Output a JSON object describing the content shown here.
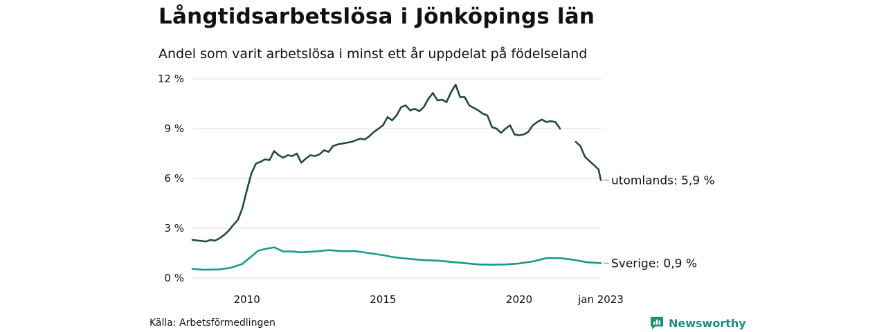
{
  "title": "Långtidsarbetslösa i Jönköpings län",
  "subtitle": "Andel som varit arbetslösa i minst ett år uppdelat på födelseland",
  "source": "Källa: Arbetsförmedlingen",
  "brand": "Newsworthy",
  "colors": {
    "utomlands": "#1f4a40",
    "sverige": "#179a87",
    "grid": "#dddddd"
  },
  "chart_data": {
    "type": "line",
    "title": "Långtidsarbetslösa i Jönköpings län",
    "subtitle": "Andel som varit arbetslösa i minst ett år uppdelat på födelseland",
    "xlabel": "",
    "ylabel": "",
    "ylim": [
      0,
      12
    ],
    "xlim": [
      "2008-01",
      "2023-01"
    ],
    "y_ticks": [
      {
        "value": 0,
        "label": "0 %"
      },
      {
        "value": 3,
        "label": "3 %"
      },
      {
        "value": 6,
        "label": "6 %"
      },
      {
        "value": 9,
        "label": "9 %"
      },
      {
        "value": 12,
        "label": "12 %"
      }
    ],
    "x_ticks": [
      {
        "value": "2010-01",
        "label": "2010"
      },
      {
        "value": "2015-01",
        "label": "2015"
      },
      {
        "value": "2020-01",
        "label": "2020"
      },
      {
        "value": "2023-01",
        "label": "jan 2023"
      }
    ],
    "grid": "horizontal",
    "legend": "end-labels",
    "series": [
      {
        "name": "utomlands",
        "end_label": "utomlands: 5,9 %",
        "color": "#1f4a40",
        "points": [
          [
            "2008-01",
            2.3
          ],
          [
            "2008-04",
            2.25
          ],
          [
            "2008-07",
            2.2
          ],
          [
            "2008-09",
            2.3
          ],
          [
            "2008-11",
            2.25
          ],
          [
            "2009-01",
            2.4
          ],
          [
            "2009-03",
            2.6
          ],
          [
            "2009-05",
            2.85
          ],
          [
            "2009-07",
            3.2
          ],
          [
            "2009-09",
            3.5
          ],
          [
            "2009-11",
            4.2
          ],
          [
            "2010-01",
            5.3
          ],
          [
            "2010-03",
            6.3
          ],
          [
            "2010-05",
            6.9
          ],
          [
            "2010-07",
            7.0
          ],
          [
            "2010-09",
            7.15
          ],
          [
            "2010-11",
            7.1
          ],
          [
            "2011-01",
            7.65
          ],
          [
            "2011-03",
            7.4
          ],
          [
            "2011-05",
            7.25
          ],
          [
            "2011-07",
            7.4
          ],
          [
            "2011-09",
            7.35
          ],
          [
            "2011-11",
            7.5
          ],
          [
            "2012-01",
            6.95
          ],
          [
            "2012-03",
            7.2
          ],
          [
            "2012-05",
            7.4
          ],
          [
            "2012-07",
            7.35
          ],
          [
            "2012-09",
            7.45
          ],
          [
            "2012-11",
            7.7
          ],
          [
            "2013-01",
            7.6
          ],
          [
            "2013-03",
            7.95
          ],
          [
            "2013-05",
            8.05
          ],
          [
            "2013-07",
            8.1
          ],
          [
            "2013-09",
            8.15
          ],
          [
            "2013-11",
            8.2
          ],
          [
            "2014-01",
            8.3
          ],
          [
            "2014-03",
            8.4
          ],
          [
            "2014-05",
            8.35
          ],
          [
            "2014-07",
            8.55
          ],
          [
            "2014-09",
            8.8
          ],
          [
            "2014-11",
            9.0
          ],
          [
            "2015-01",
            9.2
          ],
          [
            "2015-03",
            9.7
          ],
          [
            "2015-05",
            9.5
          ],
          [
            "2015-07",
            9.8
          ],
          [
            "2015-09",
            10.3
          ],
          [
            "2015-11",
            10.4
          ],
          [
            "2016-01",
            10.1
          ],
          [
            "2016-03",
            10.2
          ],
          [
            "2016-05",
            10.05
          ],
          [
            "2016-07",
            10.3
          ],
          [
            "2016-09",
            10.8
          ],
          [
            "2016-11",
            11.15
          ],
          [
            "2017-01",
            10.7
          ],
          [
            "2017-03",
            10.75
          ],
          [
            "2017-05",
            10.6
          ],
          [
            "2017-07",
            11.2
          ],
          [
            "2017-09",
            11.65
          ],
          [
            "2017-11",
            10.9
          ],
          [
            "2018-01",
            10.9
          ],
          [
            "2018-03",
            10.4
          ],
          [
            "2018-05",
            10.25
          ],
          [
            "2018-07",
            10.1
          ],
          [
            "2018-09",
            9.9
          ],
          [
            "2018-11",
            9.8
          ],
          [
            "2019-01",
            9.1
          ],
          [
            "2019-03",
            9.0
          ],
          [
            "2019-05",
            8.75
          ],
          [
            "2019-07",
            9.0
          ],
          [
            "2019-09",
            9.2
          ],
          [
            "2019-11",
            8.65
          ],
          [
            "2020-01",
            8.6
          ],
          [
            "2020-03",
            8.65
          ],
          [
            "2020-05",
            8.8
          ],
          [
            "2020-07",
            9.2
          ],
          [
            "2020-09",
            9.4
          ],
          [
            "2020-11",
            9.55
          ],
          [
            "2021-01",
            9.4
          ],
          [
            "2021-03",
            9.45
          ],
          [
            "2021-05",
            9.4
          ],
          [
            "2021-07",
            9.0
          ],
          null,
          [
            "2022-02",
            8.2
          ],
          [
            "2022-04",
            7.95
          ],
          [
            "2022-06",
            7.3
          ],
          [
            "2022-08",
            7.05
          ],
          [
            "2022-10",
            6.8
          ],
          [
            "2022-12",
            6.55
          ],
          [
            "2023-01",
            5.9
          ]
        ]
      },
      {
        "name": "Sverige",
        "end_label": "Sverige: 0,9 %",
        "color": "#179a87",
        "points": [
          [
            "2008-01",
            0.55
          ],
          [
            "2008-06",
            0.5
          ],
          [
            "2009-01",
            0.52
          ],
          [
            "2009-06",
            0.62
          ],
          [
            "2009-11",
            0.85
          ],
          [
            "2010-03",
            1.3
          ],
          [
            "2010-06",
            1.65
          ],
          [
            "2010-09",
            1.75
          ],
          [
            "2011-01",
            1.85
          ],
          [
            "2011-05",
            1.6
          ],
          [
            "2011-09",
            1.6
          ],
          [
            "2012-01",
            1.55
          ],
          [
            "2012-07",
            1.6
          ],
          [
            "2013-01",
            1.68
          ],
          [
            "2013-07",
            1.62
          ],
          [
            "2014-01",
            1.62
          ],
          [
            "2014-07",
            1.5
          ],
          [
            "2015-01",
            1.38
          ],
          [
            "2015-06",
            1.25
          ],
          [
            "2016-01",
            1.15
          ],
          [
            "2016-07",
            1.08
          ],
          [
            "2017-01",
            1.05
          ],
          [
            "2017-07",
            0.97
          ],
          [
            "2018-01",
            0.9
          ],
          [
            "2018-07",
            0.82
          ],
          [
            "2019-01",
            0.8
          ],
          [
            "2019-07",
            0.82
          ],
          [
            "2020-01",
            0.88
          ],
          [
            "2020-07",
            1.0
          ],
          [
            "2021-01",
            1.2
          ],
          [
            "2021-07",
            1.2
          ],
          [
            "2022-01",
            1.1
          ],
          [
            "2022-07",
            0.95
          ],
          [
            "2023-01",
            0.9
          ]
        ]
      }
    ]
  }
}
